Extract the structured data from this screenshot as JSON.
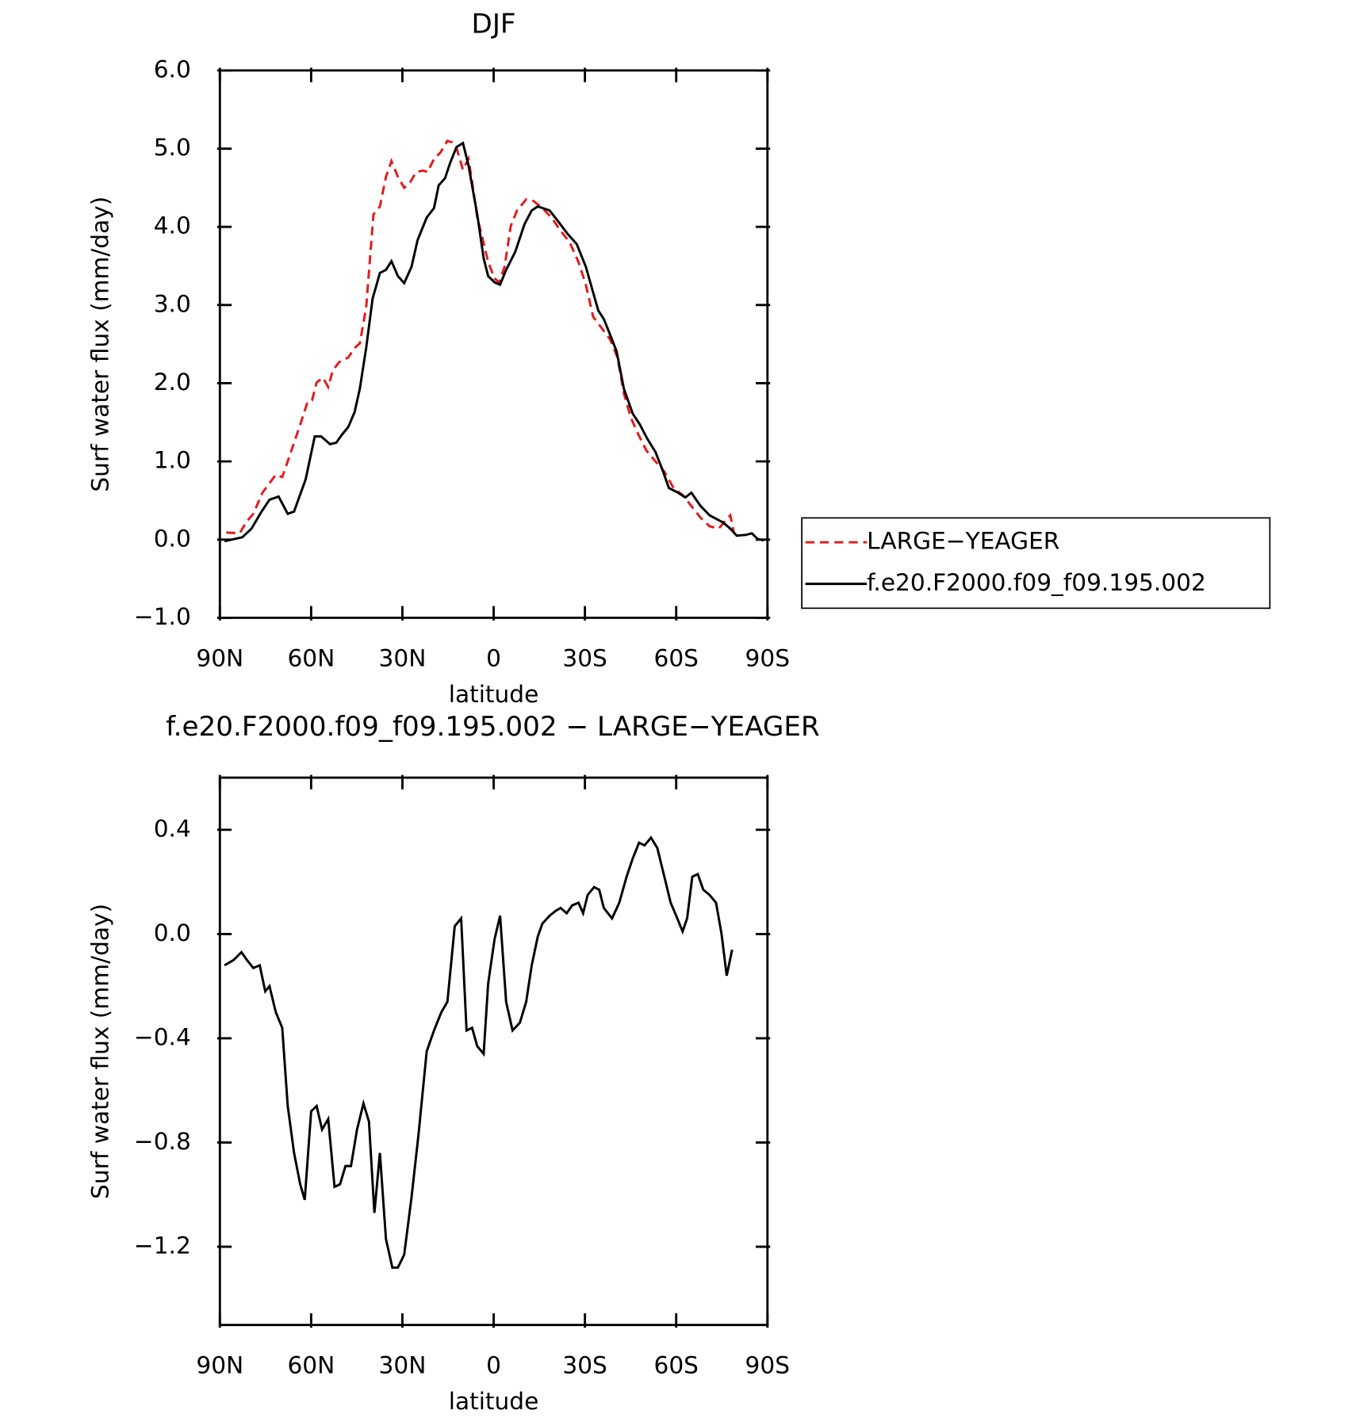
{
  "chart_data": [
    {
      "type": "line",
      "title": "DJF",
      "xlabel": "latitude",
      "ylabel": "Surf water flux (mm/day)",
      "xlim": [
        90,
        -90
      ],
      "xticks": [
        {
          "value": 90,
          "label": "90N"
        },
        {
          "value": 60,
          "label": "60N"
        },
        {
          "value": 30,
          "label": "30N"
        },
        0,
        {
          "value": -30,
          "label": "30S"
        },
        {
          "value": -60,
          "label": "60S"
        },
        {
          "value": -90,
          "label": "90S"
        }
      ],
      "ylim": [
        -1,
        6
      ],
      "yticks": [
        {
          "value": 6,
          "label": "6.0"
        },
        {
          "value": 5,
          "label": "5.0"
        },
        {
          "value": 4,
          "label": "4.0"
        },
        {
          "value": 3,
          "label": "3.0"
        },
        {
          "value": 2,
          "label": "2.0"
        },
        {
          "value": 1,
          "label": "1.0"
        },
        {
          "value": 0,
          "label": "0.0"
        },
        {
          "value": -1,
          "label": "−1.0"
        }
      ],
      "legend": "right",
      "series": [
        {
          "name": "LARGE−YEAGER",
          "color": "#e41a1c",
          "linestyle": "dashed",
          "x": [
            87.9,
            83.5,
            81.4,
            79.0,
            76.0,
            73.7,
            71.6,
            69.5,
            67.7,
            65.6,
            63.6,
            61.2,
            59.7,
            58.2,
            56.1,
            54.4,
            52.9,
            50.8,
            47.8,
            45.7,
            44.0,
            41.9,
            39.5,
            37.4,
            35.4,
            33.6,
            31.5,
            29.4,
            27.6,
            25.5,
            23.2,
            21.7,
            19.6,
            17.5,
            15.2,
            13.7,
            12.2,
            10.1,
            8.3,
            7.1,
            5.4,
            3.9,
            1.8,
            -0.3,
            -1.8,
            -3.6,
            -5.6,
            -7.7,
            -10.7,
            -13.1,
            -16.0,
            -19.0,
            -22.0,
            -25.0,
            -27.9,
            -30.3,
            -32.7,
            -35.4,
            -38.3,
            -40.7,
            -42.8,
            -45.1,
            -47.5,
            -50.2,
            -53.2,
            -56.1,
            -59.1,
            -62.1,
            -65.0,
            -68.0,
            -71.0,
            -74.0,
            -76.3,
            -77.8,
            -79.0
          ],
          "values": [
            0.09,
            0.08,
            0.22,
            0.33,
            0.6,
            0.72,
            0.83,
            0.8,
            1.0,
            1.24,
            1.47,
            1.76,
            1.78,
            2.01,
            2.07,
            1.95,
            2.16,
            2.27,
            2.33,
            2.45,
            2.51,
            2.97,
            4.16,
            4.26,
            4.64,
            4.84,
            4.64,
            4.5,
            4.56,
            4.7,
            4.72,
            4.7,
            4.87,
            4.95,
            5.1,
            5.08,
            5.01,
            4.73,
            4.87,
            4.58,
            4.12,
            3.89,
            3.55,
            3.34,
            3.29,
            3.49,
            4.01,
            4.21,
            4.35,
            4.33,
            4.24,
            4.12,
            3.95,
            3.8,
            3.55,
            3.26,
            2.85,
            2.71,
            2.56,
            2.33,
            1.87,
            1.56,
            1.35,
            1.14,
            1.0,
            0.87,
            0.66,
            0.57,
            0.43,
            0.28,
            0.17,
            0.14,
            0.25,
            0.31,
            0.08
          ]
        },
        {
          "name": "f.e20.F2000.f09_f09.195.002",
          "color": "#000000",
          "linestyle": "solid",
          "x": [
            88.5,
            82.6,
            79.6,
            76.6,
            73.7,
            70.7,
            67.7,
            65.6,
            61.8,
            58.8,
            56.7,
            53.8,
            51.7,
            49.9,
            47.8,
            45.7,
            44.0,
            41.9,
            39.8,
            37.4,
            35.4,
            33.6,
            31.5,
            29.4,
            27.0,
            25.0,
            22.0,
            19.6,
            18.1,
            16.0,
            14.3,
            12.2,
            10.1,
            8.3,
            7.1,
            5.4,
            3.3,
            1.8,
            -0.3,
            -2.1,
            -4.1,
            -7.1,
            -10.1,
            -12.5,
            -14.5,
            -18.4,
            -21.4,
            -24.3,
            -27.3,
            -30.3,
            -32.4,
            -34.4,
            -36.2,
            -38.3,
            -40.4,
            -42.8,
            -45.7,
            -48.1,
            -50.5,
            -53.2,
            -55.5,
            -57.6,
            -60.6,
            -63.0,
            -65.0,
            -68.0,
            -71.0,
            -75.4,
            -77.8,
            -79.9,
            -82.9,
            -84.9,
            -86.7,
            -88.8
          ],
          "values": [
            -0.02,
            0.03,
            0.14,
            0.34,
            0.51,
            0.55,
            0.33,
            0.36,
            0.77,
            1.32,
            1.32,
            1.22,
            1.24,
            1.34,
            1.44,
            1.63,
            1.93,
            2.45,
            3.08,
            3.41,
            3.45,
            3.56,
            3.37,
            3.28,
            3.49,
            3.83,
            4.12,
            4.24,
            4.53,
            4.62,
            4.82,
            5.02,
            5.07,
            4.79,
            4.53,
            4.16,
            3.6,
            3.37,
            3.29,
            3.26,
            3.45,
            3.68,
            4.03,
            4.21,
            4.26,
            4.21,
            4.06,
            3.91,
            3.78,
            3.49,
            3.2,
            2.93,
            2.82,
            2.62,
            2.41,
            1.93,
            1.61,
            1.47,
            1.29,
            1.12,
            0.89,
            0.66,
            0.6,
            0.54,
            0.6,
            0.43,
            0.31,
            0.22,
            0.14,
            0.05,
            0.06,
            0.08,
            0.01,
            -0.01
          ]
        }
      ]
    },
    {
      "type": "line",
      "title": "f.e20.F2000.f09_f09.195.002 − LARGE−YEAGER",
      "xlabel": "latitude",
      "ylabel": "Surf water flux (mm/day)",
      "xlim": [
        90,
        -90
      ],
      "xticks": [
        {
          "value": 90,
          "label": "90N"
        },
        {
          "value": 60,
          "label": "60N"
        },
        {
          "value": 30,
          "label": "30N"
        },
        0,
        {
          "value": -30,
          "label": "30S"
        },
        {
          "value": -60,
          "label": "60S"
        },
        {
          "value": -90,
          "label": "90S"
        }
      ],
      "ylim": [
        -1.5,
        0.6
      ],
      "yticks": [
        {
          "value": 0.4,
          "label": "0.4"
        },
        {
          "value": 0,
          "label": "0.0"
        },
        {
          "value": -0.4,
          "label": "−0.4"
        },
        {
          "value": -0.8,
          "label": "−0.8"
        },
        {
          "value": -1.2,
          "label": "−1.2"
        }
      ],
      "series": [
        {
          "color": "#000000",
          "linestyle": "solid",
          "x": [
            88.5,
            85.5,
            82.9,
            81.1,
            79.0,
            76.9,
            75.1,
            73.7,
            71.6,
            69.5,
            67.7,
            65.6,
            63.6,
            62.1,
            60.0,
            58.2,
            56.4,
            54.4,
            52.3,
            50.5,
            48.7,
            46.9,
            44.9,
            42.8,
            41.0,
            39.2,
            37.4,
            35.4,
            33.3,
            31.5,
            29.4,
            27.0,
            24.7,
            22.0,
            19.6,
            17.2,
            15.2,
            12.8,
            10.7,
            8.9,
            7.1,
            5.4,
            3.3,
            1.8,
            -0.3,
            -2.1,
            -4.1,
            -6.2,
            -8.6,
            -10.7,
            -12.5,
            -14.5,
            -16.0,
            -18.4,
            -20.5,
            -22.0,
            -24.0,
            -25.8,
            -27.9,
            -29.4,
            -30.9,
            -33.0,
            -34.7,
            -36.2,
            -38.9,
            -41.3,
            -43.7,
            -45.7,
            -47.8,
            -49.6,
            -51.7,
            -53.8,
            -56.1,
            -58.2,
            -60.0,
            -62.1,
            -63.6,
            -65.3,
            -67.1,
            -68.9,
            -71.0,
            -73.1,
            -74.9,
            -76.6,
            -78.4
          ],
          "values": [
            -0.12,
            -0.1,
            -0.07,
            -0.1,
            -0.13,
            -0.12,
            -0.22,
            -0.2,
            -0.3,
            -0.36,
            -0.66,
            -0.84,
            -0.96,
            -1.02,
            -0.68,
            -0.66,
            -0.75,
            -0.71,
            -0.97,
            -0.96,
            -0.89,
            -0.89,
            -0.75,
            -0.65,
            -0.72,
            -1.07,
            -0.84,
            -1.17,
            -1.28,
            -1.28,
            -1.23,
            -1.01,
            -0.77,
            -0.45,
            -0.37,
            -0.3,
            -0.26,
            0.03,
            0.06,
            -0.37,
            -0.36,
            -0.43,
            -0.46,
            -0.19,
            -0.02,
            0.07,
            -0.26,
            -0.37,
            -0.34,
            -0.26,
            -0.12,
            -0.01,
            0.04,
            0.07,
            0.09,
            0.1,
            0.08,
            0.11,
            0.12,
            0.08,
            0.15,
            0.18,
            0.17,
            0.1,
            0.06,
            0.12,
            0.22,
            0.29,
            0.35,
            0.34,
            0.37,
            0.33,
            0.22,
            0.12,
            0.07,
            0.01,
            0.06,
            0.22,
            0.23,
            0.17,
            0.15,
            0.12,
            0.0,
            -0.16,
            -0.06
          ]
        }
      ]
    }
  ]
}
